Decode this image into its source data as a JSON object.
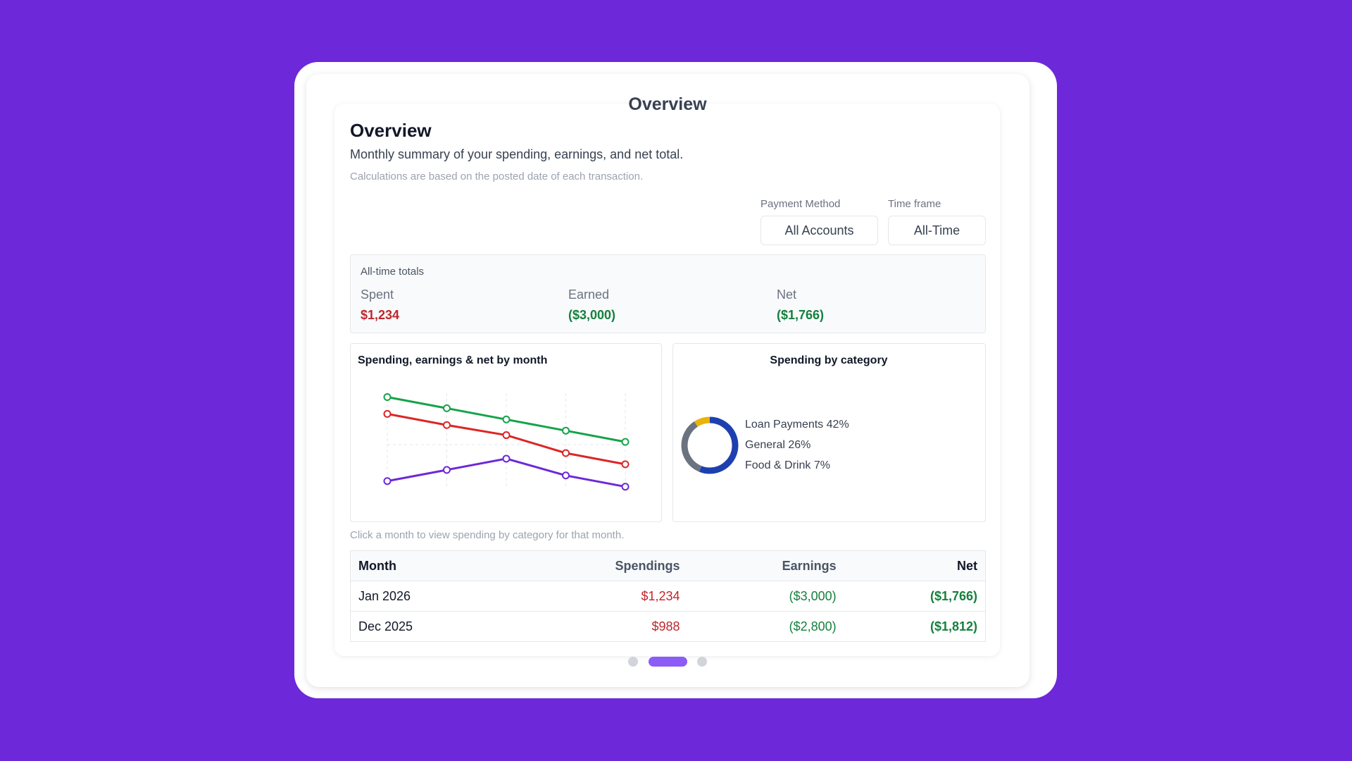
{
  "header": {
    "title": "Overview"
  },
  "overview": {
    "title": "Overview",
    "subtitle": "Monthly summary of your spending, earnings, and net total.",
    "note": "Calculations are based on the posted date of each transaction."
  },
  "filters": [
    {
      "label": "Payment Method",
      "value": "All Accounts"
    },
    {
      "label": "Time frame",
      "value": "All-Time"
    }
  ],
  "totals": {
    "title": "All-time totals",
    "items": [
      {
        "label": "Spent",
        "value": "$1,234"
      },
      {
        "label": "Earned",
        "value": "($3,000)"
      },
      {
        "label": "Net",
        "value": "($1,766)"
      }
    ]
  },
  "line_chart": {
    "type": "line",
    "title": "Spending, earnings & net by month",
    "ylim": [
      0,
      100
    ],
    "series": [
      {
        "color": "#16a34a",
        "values": [
          89,
          79,
          69,
          59,
          49
        ]
      },
      {
        "color": "#dc2626",
        "values": [
          74,
          64,
          55,
          39,
          29
        ]
      },
      {
        "color": "#6d28d9",
        "values": [
          14,
          24,
          34,
          19,
          9
        ]
      }
    ]
  },
  "donut_chart": {
    "type": "pie",
    "title": "Spending by category",
    "categories": [
      "Loan Payments",
      "General",
      "Food & Drink"
    ],
    "values": [
      42,
      26,
      7
    ],
    "value_labels": [
      "42%",
      "26%",
      "7%"
    ],
    "colors": [
      "#1e40af",
      "#6b7280",
      "#eab308"
    ]
  },
  "table": {
    "note": "Click a month to view spending by category for that month.",
    "columns": [
      "Month",
      "Spendings",
      "Earnings",
      "Net"
    ],
    "rows": [
      [
        "Jan 2026",
        "$1,234",
        "($3,000)",
        "($1,766)"
      ],
      [
        "Dec 2025",
        "$988",
        "($2,800)",
        "($1,812)"
      ]
    ]
  }
}
